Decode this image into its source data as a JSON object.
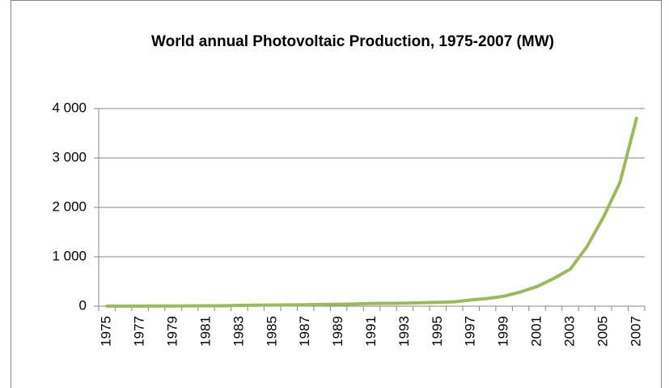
{
  "chart_data": {
    "type": "line",
    "title": "World annual Photovoltaic Production, 1975-2007 (MW)",
    "categories": [
      "1975",
      null,
      "1977",
      null,
      "1979",
      null,
      "1981",
      null,
      "1983",
      null,
      "1985",
      null,
      "1987",
      null,
      "1989",
      null,
      "1991",
      null,
      "1993",
      null,
      "1995",
      null,
      "1997",
      null,
      "1999",
      null,
      "2001",
      null,
      "2003",
      null,
      "2005",
      null,
      "2007"
    ],
    "values": [
      2,
      2,
      2,
      3,
      4,
      7,
      8,
      9,
      17,
      22,
      23,
      26,
      29,
      34,
      40,
      46,
      55,
      58,
      60,
      69,
      78,
      89,
      126,
      155,
      201,
      288,
      399,
      560,
      750,
      1200,
      1800,
      2500,
      3800
    ],
    "color": "#9bbb59",
    "ylim": [
      0,
      4000
    ],
    "yticks": [
      0,
      {
        "value": 1000,
        "label": "1 000"
      },
      {
        "value": 2000,
        "label": "2 000"
      },
      {
        "value": 3000,
        "label": "3 000"
      },
      {
        "value": 4000,
        "label": "4 000"
      }
    ],
    "grid": true
  }
}
